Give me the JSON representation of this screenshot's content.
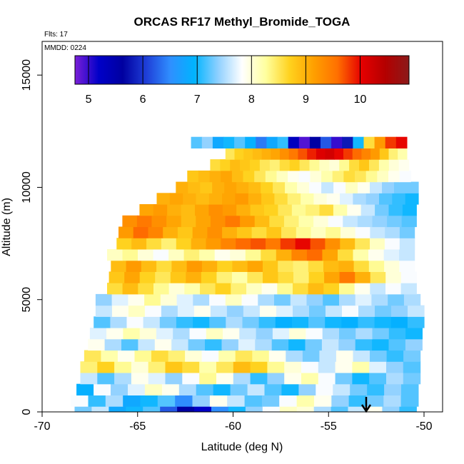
{
  "chart_data": {
    "type": "heatmap",
    "title": "ORCAS RF17 Methyl_Bromide_TOGA",
    "annotations": {
      "flights": "Flts: 17",
      "date": "MMDD: 0224"
    },
    "xlabel": "Latitude (deg N)",
    "ylabel": "Altitude (m)",
    "xlim": [
      -70,
      -49
    ],
    "ylim": [
      0,
      16500
    ],
    "x_ticks": [
      -70,
      -65,
      -60,
      -55,
      -50
    ],
    "x_tick_labels": [
      "-70",
      "-65",
      "-60",
      "-55",
      "-50"
    ],
    "y_ticks": [
      0,
      5000,
      10000,
      15000
    ],
    "y_tick_labels": [
      "0",
      "5000",
      "10000",
      "15000"
    ],
    "colorbar": {
      "range": [
        4.75,
        10.9
      ],
      "ticks": [
        5,
        6,
        7,
        8,
        9,
        10
      ],
      "tick_labels": [
        "5",
        "6",
        "7",
        "8",
        "9",
        "10"
      ],
      "placement": "top-inside",
      "colors": [
        "#7b1fd8",
        "#0000c8",
        "#0000a0",
        "#1f3fd8",
        "#2f8fff",
        "#00b4ff",
        "#8fd0ff",
        "#ffffff",
        "#ffff9e",
        "#ffd21e",
        "#ffa000",
        "#ff7000",
        "#e60000",
        "#b40000",
        "#8b1a1a"
      ]
    },
    "bands": [
      {
        "alt": 150,
        "lat0": -68.3,
        "lat1": -50.4,
        "vals": [
          7.3,
          7.6,
          6.8,
          7.0,
          7.2,
          6.2,
          5.6,
          5.2,
          6.5,
          7.0,
          7.4,
          7.8,
          8.1,
          8.0,
          7.5,
          7.2,
          7.6,
          7.9,
          7.4,
          7.1
        ]
      },
      {
        "alt": 500,
        "lat0": -68.5,
        "lat1": -50.3,
        "vals": [
          7.8,
          7.1,
          7.5,
          6.8,
          7.0,
          7.2,
          6.5,
          7.4,
          7.9,
          7.6,
          7.2,
          7.3,
          7.8,
          8.2,
          7.9,
          7.4,
          7.1,
          7.3,
          7.5,
          7.2
        ]
      },
      {
        "alt": 1000,
        "lat0": -68.2,
        "lat1": -50.3,
        "vals": [
          6.9,
          7.8,
          7.4,
          7.7,
          8.1,
          7.9,
          7.5,
          7.2,
          7.0,
          7.3,
          7.6,
          7.2,
          7.0,
          7.4,
          7.8,
          7.6,
          7.3,
          7.1,
          7.4,
          7.2
        ]
      },
      {
        "alt": 1500,
        "lat0": -68.0,
        "lat1": -50.2,
        "vals": [
          7.6,
          7.2,
          7.5,
          7.9,
          7.7,
          7.4,
          7.8,
          8.3,
          7.9,
          7.5,
          7.1,
          7.4,
          7.9,
          8.2,
          7.8,
          7.3,
          7.0,
          7.2,
          7.5,
          7.3
        ]
      },
      {
        "alt": 2000,
        "lat0": -68.0,
        "lat1": -50.2,
        "vals": [
          8.4,
          8.7,
          8.3,
          8.0,
          8.4,
          8.8,
          8.6,
          8.2,
          8.5,
          8.9,
          8.7,
          8.3,
          8.0,
          7.8,
          7.6,
          7.9,
          8.2,
          7.7,
          7.4,
          7.2
        ]
      },
      {
        "alt": 2500,
        "lat0": -67.8,
        "lat1": -50.2,
        "vals": [
          8.5,
          8.2,
          7.9,
          8.3,
          8.6,
          8.4,
          8.0,
          7.8,
          8.2,
          8.5,
          8.3,
          7.9,
          7.5,
          7.3,
          7.6,
          7.9,
          7.6,
          7.3,
          7.1,
          7.3
        ]
      },
      {
        "alt": 3000,
        "lat0": -67.6,
        "lat1": -50.1,
        "vals": [
          7.9,
          7.5,
          7.2,
          7.6,
          7.9,
          7.6,
          7.3,
          7.1,
          7.4,
          7.7,
          7.5,
          7.2,
          7.0,
          7.3,
          7.6,
          7.4,
          7.1,
          7.0,
          7.2,
          7.4
        ]
      },
      {
        "alt": 3500,
        "lat0": -67.5,
        "lat1": -50.1,
        "vals": [
          7.7,
          7.9,
          8.2,
          8.0,
          7.7,
          7.5,
          7.8,
          8.1,
          7.9,
          7.6,
          7.4,
          7.7,
          8.0,
          7.8,
          7.5,
          7.3,
          7.5,
          7.3,
          7.1,
          7.0
        ]
      },
      {
        "alt": 4000,
        "lat0": -67.3,
        "lat1": -50.0,
        "vals": [
          7.2,
          7.5,
          7.8,
          7.6,
          7.3,
          7.1,
          7.0,
          7.2,
          7.5,
          7.3,
          7.1,
          6.9,
          7.0,
          7.2,
          7.0,
          6.9,
          7.1,
          7.0,
          6.9,
          7.1
        ]
      },
      {
        "alt": 4500,
        "lat0": -67.2,
        "lat1": -50.0,
        "vals": [
          7.6,
          7.9,
          8.1,
          7.8,
          7.5,
          7.7,
          7.9,
          7.6,
          7.4,
          7.6,
          7.9,
          7.7,
          7.5,
          7.3,
          7.6,
          7.8,
          7.5,
          7.3,
          7.4,
          7.6
        ]
      },
      {
        "alt": 5000,
        "lat0": -67.2,
        "lat1": -50.2,
        "vals": [
          7.4,
          7.7,
          7.9,
          8.3,
          8.0,
          7.7,
          7.5,
          7.8,
          8.1,
          7.8,
          7.5,
          7.3,
          7.6,
          7.4,
          7.2,
          7.5,
          7.7,
          7.5,
          7.3,
          7.5
        ]
      },
      {
        "alt": 5500,
        "lat0": -66.6,
        "lat1": -50.4,
        "vals": [
          8.6,
          8.9,
          8.6,
          8.3,
          8.0,
          8.2,
          8.5,
          8.7,
          8.4,
          8.1,
          7.9,
          8.3,
          8.6,
          8.9,
          8.7,
          8.3,
          7.9,
          7.6,
          7.8,
          7.6
        ]
      },
      {
        "alt": 6000,
        "lat0": -66.5,
        "lat1": -50.4,
        "vals": [
          8.8,
          9.1,
          8.7,
          8.5,
          8.8,
          9.0,
          8.7,
          8.4,
          8.2,
          8.5,
          8.8,
          8.6,
          8.4,
          8.7,
          9.1,
          9.5,
          9.0,
          8.5,
          8.0,
          7.8
        ]
      },
      {
        "alt": 6500,
        "lat0": -66.4,
        "lat1": -50.5,
        "vals": [
          8.9,
          9.2,
          8.9,
          8.6,
          8.9,
          9.2,
          9.0,
          8.7,
          8.9,
          9.1,
          8.8,
          8.5,
          8.4,
          8.6,
          8.9,
          9.0,
          8.6,
          8.3,
          8.0,
          7.8
        ]
      },
      {
        "alt": 7000,
        "lat0": -66.6,
        "lat1": -50.5,
        "vals": [
          8.1,
          8.3,
          8.0,
          7.8,
          8.1,
          8.4,
          8.2,
          7.9,
          8.0,
          8.3,
          8.6,
          9.0,
          9.4,
          9.6,
          9.1,
          8.6,
          8.2,
          7.9,
          7.7,
          7.6
        ]
      },
      {
        "alt": 7500,
        "lat0": -66.1,
        "lat1": -50.5,
        "vals": [
          8.7,
          8.9,
          8.6,
          8.4,
          8.7,
          9.0,
          9.2,
          9.4,
          9.6,
          9.7,
          9.5,
          9.8,
          10.0,
          9.7,
          9.3,
          8.9,
          8.5,
          8.1,
          7.8,
          7.6
        ]
      },
      {
        "alt": 8000,
        "lat0": -66.0,
        "lat1": -50.5,
        "vals": [
          9.2,
          9.6,
          9.4,
          9.0,
          8.8,
          9.1,
          9.3,
          9.0,
          8.8,
          8.6,
          8.8,
          8.5,
          8.3,
          8.1,
          8.3,
          8.0,
          7.8,
          7.6,
          7.5,
          7.3
        ]
      },
      {
        "alt": 8500,
        "lat0": -65.8,
        "lat1": -50.4,
        "vals": [
          9.3,
          9.5,
          9.3,
          9.1,
          8.9,
          9.1,
          9.3,
          9.5,
          9.2,
          8.9,
          8.6,
          8.4,
          8.2,
          8.0,
          7.8,
          7.6,
          7.5,
          7.4,
          7.3,
          7.2
        ]
      },
      {
        "alt": 9000,
        "lat0": -64.9,
        "lat1": -50.4,
        "vals": [
          9.1,
          9.2,
          9.0,
          8.9,
          9.1,
          9.3,
          9.2,
          9.0,
          8.8,
          8.7,
          8.5,
          8.3,
          8.4,
          8.6,
          8.2,
          7.9,
          7.6,
          7.3,
          7.1,
          7.0
        ]
      },
      {
        "alt": 9500,
        "lat0": -64.0,
        "lat1": -50.3,
        "vals": [
          9.0,
          9.1,
          9.0,
          8.9,
          9.0,
          9.1,
          9.2,
          9.0,
          8.8,
          8.6,
          8.4,
          8.2,
          8.0,
          7.9,
          7.7,
          7.5,
          7.4,
          7.2,
          7.1,
          7.0
        ]
      },
      {
        "alt": 10000,
        "lat0": -63.0,
        "lat1": -50.3,
        "vals": [
          9.0,
          8.9,
          8.8,
          9.0,
          9.1,
          9.0,
          8.9,
          8.7,
          8.5,
          8.2,
          8.0,
          7.8,
          7.6,
          7.8,
          8.1,
          7.9,
          7.6,
          7.4,
          7.3,
          7.3
        ]
      },
      {
        "alt": 10500,
        "lat0": -62.4,
        "lat1": -50.7,
        "vals": [
          8.8,
          8.9,
          9.0,
          9.1,
          8.9,
          8.7,
          8.5,
          8.3,
          8.1,
          7.9,
          7.8,
          8.0,
          8.2,
          8.4,
          8.6,
          8.5,
          8.3,
          8.1,
          7.9,
          7.8
        ]
      },
      {
        "alt": 11000,
        "lat0": -61.2,
        "lat1": -50.8,
        "vals": [
          8.6,
          8.7,
          8.9,
          8.8,
          8.7,
          8.5,
          8.4,
          8.6,
          8.7,
          8.5,
          8.3,
          8.1,
          8.0,
          8.3,
          8.6,
          8.8,
          8.5,
          8.2,
          8.0,
          7.9
        ]
      },
      {
        "alt": 11500,
        "lat0": -60.4,
        "lat1": -50.9,
        "vals": [
          8.5,
          8.7,
          8.8,
          8.9,
          9.0,
          9.1,
          9.3,
          9.5,
          9.7,
          9.9,
          10.1,
          10.2,
          10.0,
          9.8,
          9.6,
          9.4,
          9.2,
          8.8,
          8.4,
          8.2
        ]
      },
      {
        "alt": 12000,
        "lat0": -62.2,
        "lat1": -50.9,
        "vals": [
          7.2,
          7.4,
          6.8,
          7.0,
          7.2,
          6.9,
          6.4,
          6.8,
          7.1,
          5.3,
          4.9,
          5.6,
          6.2,
          5.0,
          5.8,
          7.0,
          8.6,
          9.2,
          9.8,
          10.0
        ]
      }
    ]
  }
}
